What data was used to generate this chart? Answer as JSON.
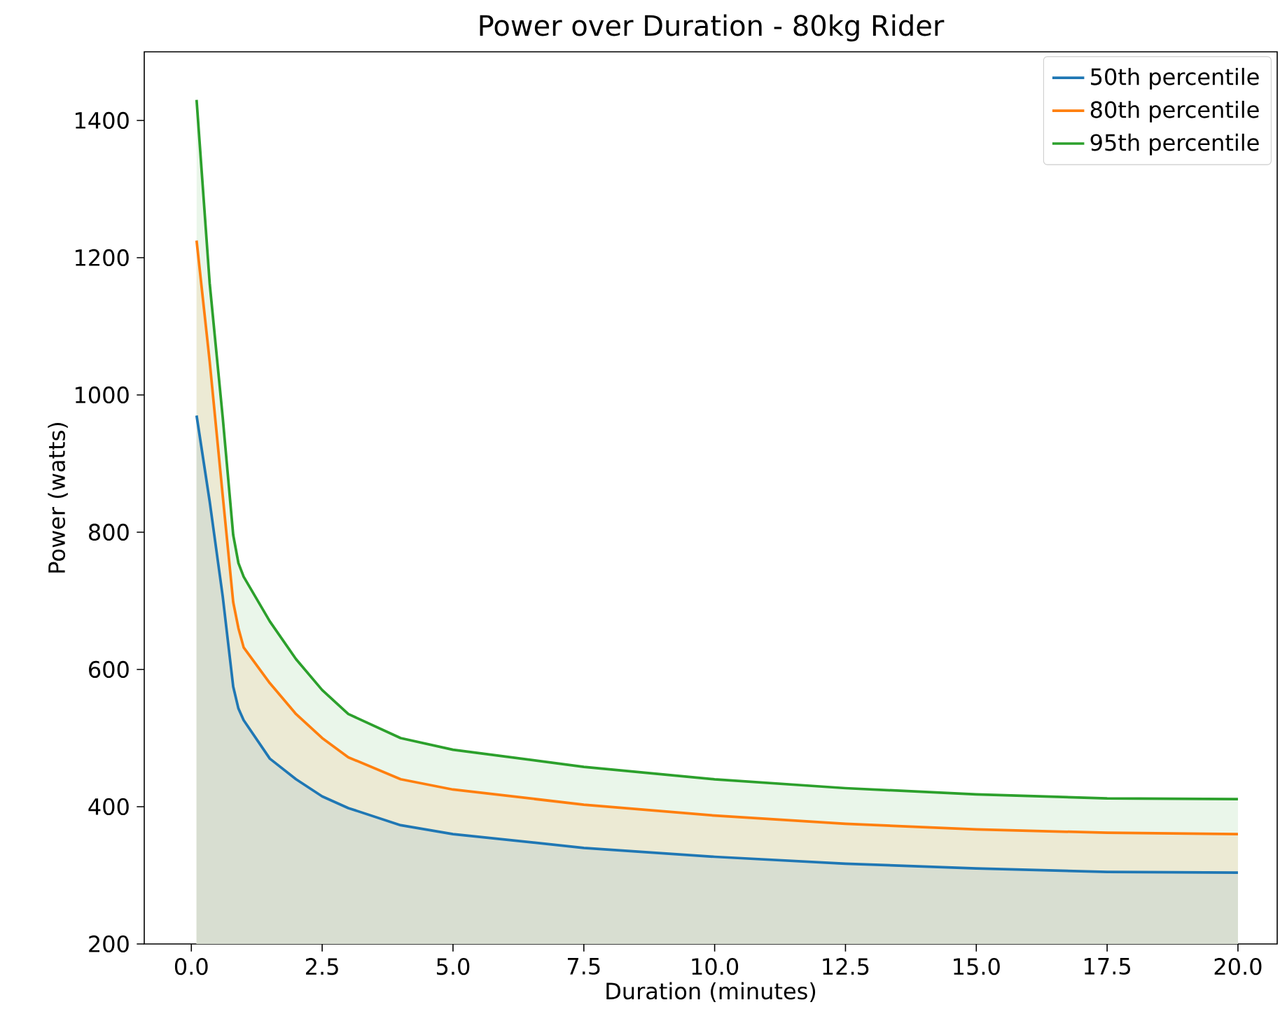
{
  "chart_data": {
    "type": "area",
    "title": "Power over Duration - 80kg Rider",
    "xlabel": "Duration (minutes)",
    "ylabel": "Power (watts)",
    "x": [
      0.1,
      0.35,
      0.6,
      0.8,
      0.9,
      1,
      1.5,
      2,
      2.5,
      3,
      4,
      5,
      7.5,
      10,
      12.5,
      15,
      17.5,
      20
    ],
    "series": [
      {
        "name": "50th percentile",
        "color": "#1f77b4",
        "values": [
          970,
          845,
          706,
          575,
          543,
          526,
          470,
          440,
          415,
          398,
          373,
          360,
          340,
          327,
          317,
          310,
          305,
          304
        ]
      },
      {
        "name": "80th percentile",
        "color": "#ff7f0e",
        "values": [
          1225,
          1049,
          853,
          698,
          660,
          632,
          580,
          535,
          500,
          472,
          440,
          425,
          403,
          387,
          375,
          367,
          362,
          360
        ]
      },
      {
        "name": "95th percentile",
        "color": "#2ca02c",
        "values": [
          1430,
          1163,
          967,
          796,
          755,
          735,
          670,
          615,
          570,
          535,
          500,
          483,
          458,
          440,
          427,
          418,
          412,
          411
        ]
      }
    ],
    "xlim": [
      -0.9,
      20.75
    ],
    "ylim": [
      200,
      1500
    ],
    "xticks": [
      {
        "value": 0,
        "label": "0.0"
      },
      {
        "value": 2.5,
        "label": "2.5"
      },
      {
        "value": 5,
        "label": "5.0"
      },
      {
        "value": 7.5,
        "label": "7.5"
      },
      {
        "value": 10,
        "label": "10.0"
      },
      {
        "value": 12.5,
        "label": "12.5"
      },
      {
        "value": 15,
        "label": "15.0"
      },
      {
        "value": 17.5,
        "label": "17.5"
      },
      {
        "value": 20,
        "label": "20.0"
      }
    ],
    "yticks": [
      200,
      400,
      600,
      800,
      1000,
      1200,
      1400
    ],
    "legend": "top right",
    "grid": false
  }
}
